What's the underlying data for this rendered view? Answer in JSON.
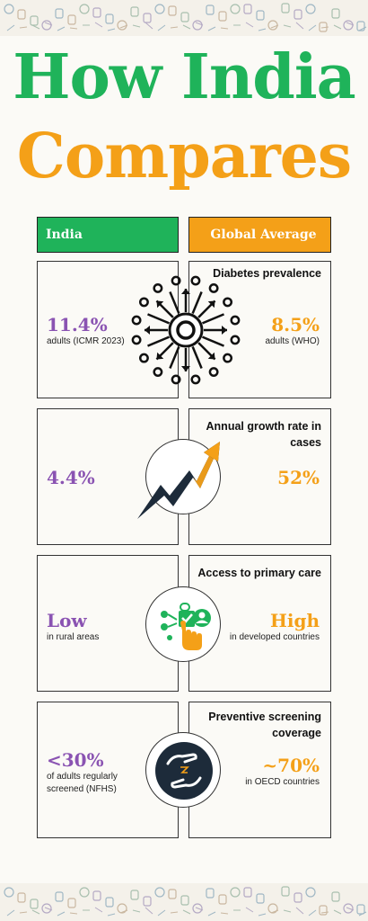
{
  "title": {
    "line1": "How India",
    "line2": "Compares"
  },
  "headers": {
    "india": "India",
    "global": "Global Average"
  },
  "colors": {
    "green": "#1fb35a",
    "orange": "#f4a018",
    "purple": "#8a53b2",
    "navy": "#1d2b3a"
  },
  "rows": [
    {
      "label": "Diabetes prevalence",
      "india_value": "11.4%",
      "india_sub": "adults (ICMR 2023)",
      "global_value": "8.5%",
      "global_sub": "adults (WHO)",
      "icon": "virus-radial-icon"
    },
    {
      "label": "Annual growth rate in cases",
      "india_value": "4.4%",
      "india_sub": "",
      "global_value": "52%",
      "global_sub": "",
      "icon": "trend-up-arrow-icon"
    },
    {
      "label": "Access to primary care",
      "india_value": "Low",
      "india_sub": "in rural areas",
      "global_value": "High",
      "global_sub": "in developed countries",
      "icon": "touch-access-icon"
    },
    {
      "label": "Preventive screening coverage",
      "india_value": "<30%",
      "india_sub": "of adults regularly screened (NFHS)",
      "global_value": "~70%",
      "global_sub": "in OECD countries",
      "icon": "hands-care-icon"
    }
  ]
}
